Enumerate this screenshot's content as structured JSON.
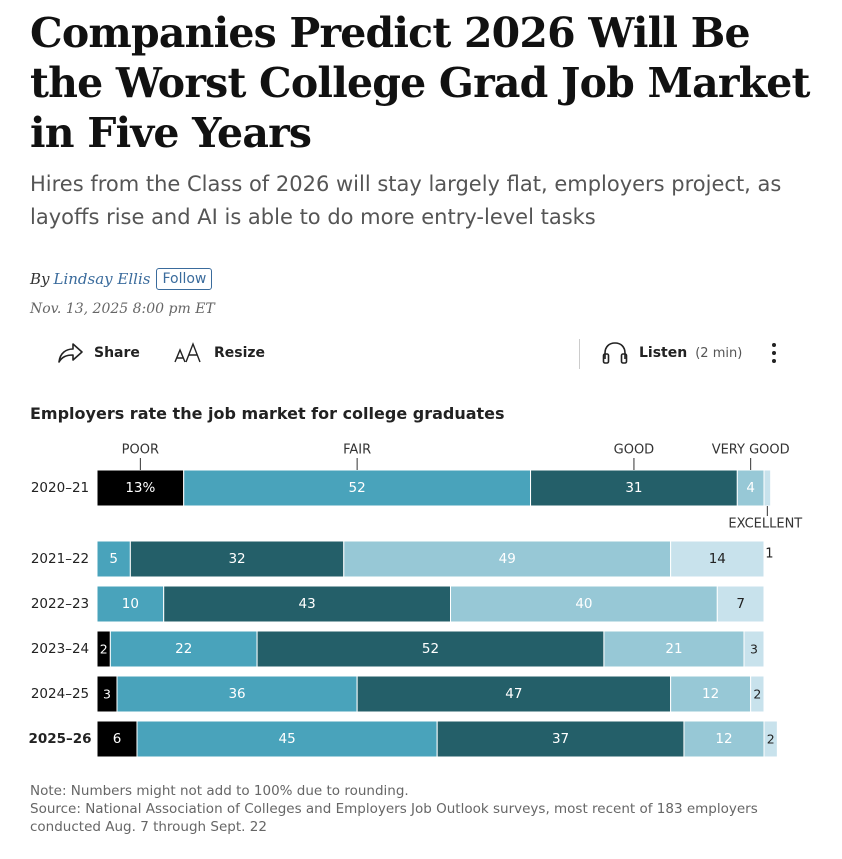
{
  "article": {
    "headline": "Companies Predict 2026 Will Be the Worst College Grad Job Market in Five Years",
    "dek": "Hires from the Class of 2026 will stay largely flat, employers project, as layoffs rise and AI is able to do more entry-level tasks",
    "by_prefix": "By",
    "author": "Lindsay Ellis",
    "follow_label": "Follow",
    "timestamp": "Nov. 13, 2025 8:00 pm ET"
  },
  "toolbar": {
    "share_label": "Share",
    "resize_label": "Resize",
    "listen_label": "Listen",
    "listen_duration": "(2 min)"
  },
  "chart_data": {
    "type": "bar",
    "orientation": "horizontal",
    "stacked": true,
    "title": "Employers rate the job market for college graduates",
    "categories": [
      "2020–21",
      "2021–22",
      "2022–23",
      "2023–24",
      "2024–25",
      "2025–26"
    ],
    "highlight_category": "2025–26",
    "series": [
      {
        "name": "POOR",
        "color": "#000000",
        "label_color": "#ffffff",
        "values": [
          13,
          0,
          0,
          2,
          3,
          6
        ]
      },
      {
        "name": "FAIR",
        "color": "#49a3bb",
        "label_color": "#ffffff",
        "values": [
          52,
          5,
          10,
          22,
          36,
          45
        ]
      },
      {
        "name": "GOOD",
        "color": "#245f69",
        "label_color": "#ffffff",
        "values": [
          31,
          32,
          43,
          52,
          47,
          37
        ]
      },
      {
        "name": "VERY GOOD",
        "color": "#97c8d6",
        "label_color": "#ffffff",
        "values": [
          4,
          49,
          40,
          21,
          12,
          12
        ]
      },
      {
        "name": "EXCELLENT",
        "color": "#c8e2ec",
        "label_color": "#222222",
        "values": [
          1,
          14,
          7,
          3,
          2,
          2
        ]
      }
    ],
    "first_label_suffix": "%",
    "xlim": [
      0,
      100
    ]
  },
  "notes": {
    "note": "Note: Numbers might not add to 100% due to rounding.",
    "source": "Source: National Association of Colleges and Employers Job Outlook surveys, most recent of 183 employers conducted Aug. 7 through Sept. 22"
  }
}
